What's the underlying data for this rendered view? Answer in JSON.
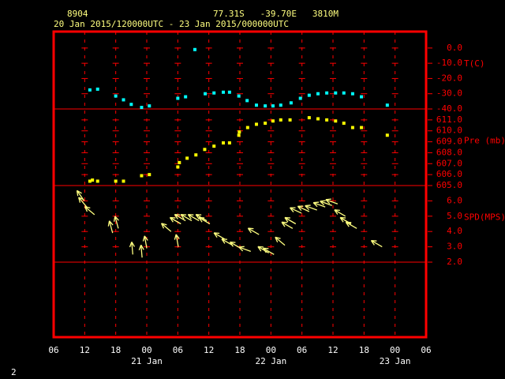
{
  "footer": "2",
  "chart_data": [
    {
      "type": "scatter",
      "title": "8904",
      "subtitle": "77.31S   -39.70E   3810M",
      "period": "20 Jan 2015/120000UTC - 23 Jan 2015/000000UTC",
      "ylabel": "T(C)",
      "color": "#00ffff",
      "xlim": [
        6,
        78
      ],
      "ylim": [
        -40,
        10.8
      ],
      "yticks": [
        {
          "value": 0,
          "label": "0.0"
        },
        {
          "value": -10,
          "label": "-10.0"
        },
        {
          "value": -20,
          "label": "-20.0"
        },
        {
          "value": -30,
          "label": "-30.0"
        },
        {
          "value": -40,
          "label": "-40.0"
        }
      ],
      "x": [
        13,
        14.5,
        18,
        19.5,
        21,
        23,
        24.5,
        30,
        31.5,
        33.3,
        35.3,
        37,
        38.8,
        40,
        41.8,
        43.4,
        45.2,
        46.9,
        48.4,
        49.9,
        51.9,
        53.7,
        55.4,
        57.1,
        58.8,
        60.5,
        62.1,
        63.8,
        65.5,
        70.5
      ],
      "values": [
        -27.5,
        -27,
        -31.5,
        -34,
        -37,
        -39,
        -38,
        -33,
        -32,
        -1,
        -30,
        -29.5,
        -29,
        -29,
        -31.5,
        -34.5,
        -37.5,
        -38,
        -38,
        -37.5,
        -36,
        -33,
        -31,
        -30,
        -29.5,
        -29.5,
        -29.5,
        -30,
        -32,
        -37.5
      ]
    },
    {
      "type": "scatter",
      "ylabel": "Pre (mb)",
      "color": "#ffff00",
      "xlim": [
        6,
        78
      ],
      "ylim": [
        605,
        612
      ],
      "yticks": [
        {
          "value": 611,
          "label": "611.0"
        },
        {
          "value": 610,
          "label": "610.0"
        },
        {
          "value": 609,
          "label": "609.0"
        },
        {
          "value": 608,
          "label": "608.0"
        },
        {
          "value": 607,
          "label": "607.0"
        },
        {
          "value": 606,
          "label": "606.0"
        },
        {
          "value": 605,
          "label": "605.0"
        }
      ],
      "x": [
        13,
        13.5,
        14.5,
        18,
        19.5,
        23,
        24.5,
        30,
        30.3,
        31.8,
        33.5,
        35.2,
        37,
        38.8,
        40,
        41.8,
        41.9,
        43.5,
        45.2,
        46.9,
        48.4,
        49.9,
        51.7,
        55.4,
        57.1,
        58.8,
        60.5,
        62.1,
        63.8,
        65.5,
        70.5
      ],
      "values": [
        605.4,
        605.5,
        605.4,
        605.4,
        605.4,
        605.9,
        606.0,
        606.7,
        607.1,
        607.5,
        607.8,
        608.3,
        608.6,
        608.9,
        608.9,
        609.6,
        609.9,
        610.3,
        610.6,
        610.7,
        610.9,
        611.0,
        611.0,
        611.2,
        611.1,
        611.0,
        610.9,
        610.7,
        610.3,
        610.3,
        609.6
      ]
    },
    {
      "type": "vector",
      "ylabel": "SPD(MPS)",
      "color": "#ffff80",
      "xlim": [
        6,
        78
      ],
      "ylim": [
        2,
        7
      ],
      "yticks": [
        {
          "value": 6,
          "label": "6.0"
        },
        {
          "value": 5,
          "label": "5.0"
        },
        {
          "value": 4,
          "label": "4.0"
        },
        {
          "value": 3,
          "label": "3.0"
        },
        {
          "value": 2,
          "label": "2.0"
        }
      ],
      "xticks": [
        {
          "value": 6,
          "label": "06"
        },
        12,
        18,
        {
          "value": 24,
          "label": "00"
        },
        {
          "value": 30,
          "label": "06"
        },
        {
          "value": 36,
          "label": "12"
        },
        {
          "value": 42,
          "label": "18"
        },
        {
          "value": 48,
          "label": "00"
        },
        {
          "value": 54,
          "label": "06"
        },
        {
          "value": 60,
          "label": "12"
        },
        {
          "value": 66,
          "label": "18"
        },
        {
          "value": 72,
          "label": "00"
        },
        {
          "value": 78,
          "label": "06"
        }
      ],
      "date_labels": [
        {
          "value": 24,
          "label": "21 Jan"
        },
        {
          "value": 48,
          "label": "22 Jan"
        },
        {
          "value": 72,
          "label": "23 Jan"
        }
      ],
      "x": [
        11.9,
        12.4,
        13.9,
        17.4,
        18.5,
        21.3,
        23.1,
        24,
        28.7,
        30.1,
        30.6,
        31.5,
        32.7,
        34.1,
        35.6,
        36.2,
        39.1,
        40.6,
        42.2,
        44.1,
        45.7,
        47.6,
        48.6,
        50.7,
        52.2,
        52.8,
        53.9,
        55.4,
        56.9,
        58.5,
        59.8,
        60.9,
        62.4,
        63.5,
        64.6,
        69.5
      ],
      "values": [
        6.0,
        5.6,
        5.1,
        3.9,
        4.2,
        2.5,
        2.3,
        2.9,
        4.0,
        3.0,
        4.5,
        4.7,
        4.7,
        4.7,
        4.7,
        4.5,
        3.5,
        3.1,
        2.9,
        2.7,
        3.8,
        2.6,
        2.5,
        3.1,
        4.2,
        4.5,
        5.2,
        5.3,
        5.4,
        5.6,
        5.7,
        5.8,
        5.0,
        4.5,
        4.2,
        3.0
      ],
      "directions": [
        125,
        130,
        140,
        105,
        105,
        95,
        95,
        100,
        140,
        100,
        150,
        150,
        150,
        150,
        150,
        150,
        150,
        150,
        150,
        160,
        150,
        150,
        150,
        140,
        150,
        150,
        155,
        155,
        160,
        160,
        160,
        160,
        150,
        150,
        150,
        150
      ]
    }
  ]
}
